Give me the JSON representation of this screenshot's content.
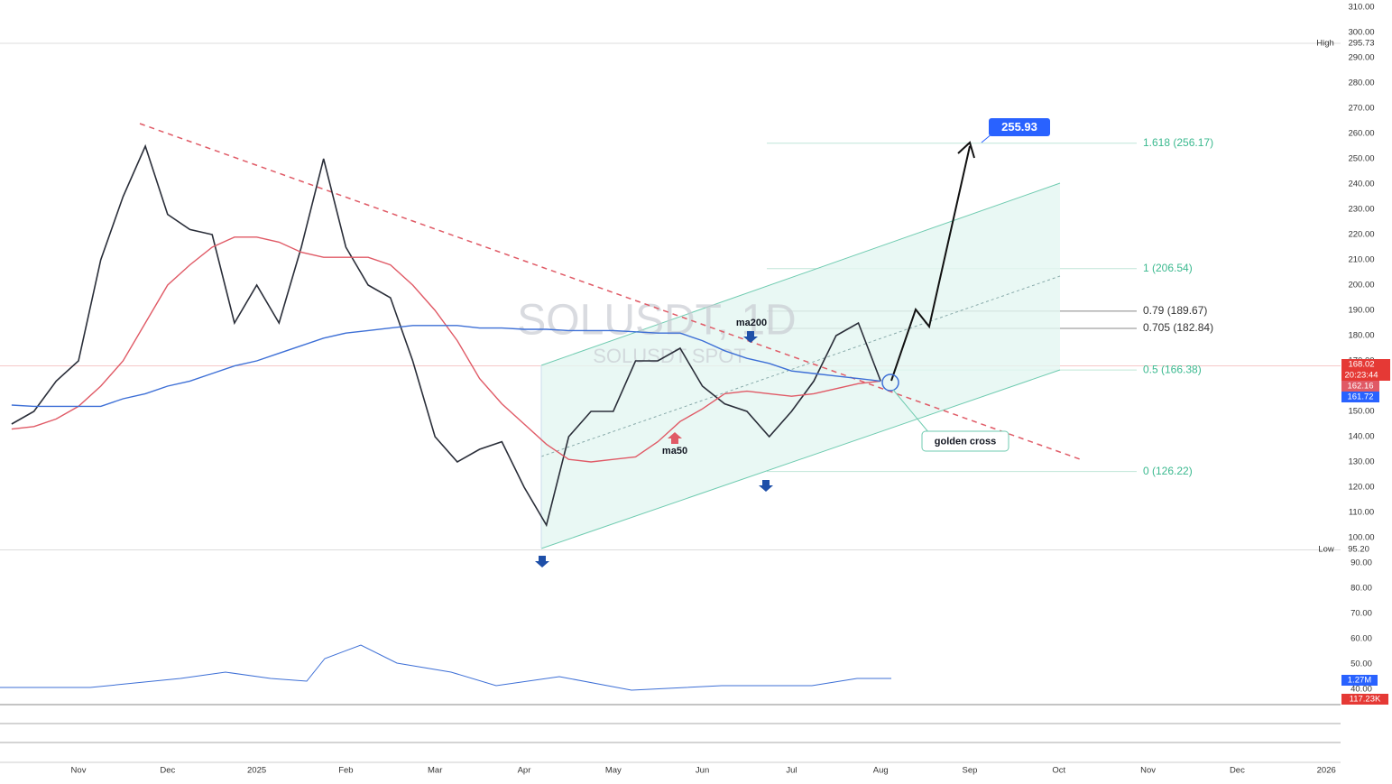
{
  "chart_data": {
    "type": "line",
    "title": "SOLUSDT, 1D",
    "subtitle": "SOLUSDT SPOT",
    "categories": [
      null,
      null,
      null,
      "Nov",
      null,
      null,
      null,
      "Dec",
      null,
      null,
      null,
      "2025",
      null,
      null,
      null,
      "Feb",
      null,
      null,
      null,
      "Mar",
      null,
      null,
      null,
      "Apr",
      null,
      null,
      null,
      "May",
      null,
      null,
      null,
      "Jun",
      null,
      null,
      null,
      "Jul",
      null,
      null,
      null,
      "Aug",
      null,
      null,
      null,
      "Sep",
      null,
      null,
      null,
      "Oct",
      null,
      null,
      null,
      "Nov",
      null,
      null,
      null,
      "Dec",
      null,
      null,
      null,
      "2026"
    ],
    "series": [
      {
        "name": "SOLUSDT",
        "color": "#2a2e39",
        "values": [
          145,
          150,
          162,
          170,
          210,
          235,
          255,
          228,
          222,
          220,
          185,
          200,
          185,
          215,
          250,
          215,
          200,
          195,
          170,
          140,
          130,
          135,
          138,
          120,
          105,
          140,
          150,
          150,
          170,
          170,
          175,
          160,
          153,
          150,
          140,
          150,
          162,
          180,
          185,
          162,
          null,
          null,
          null,
          null,
          null,
          null,
          null,
          null,
          null,
          null,
          null,
          null,
          null,
          null,
          null,
          null,
          null,
          null,
          null,
          null
        ]
      },
      {
        "name": "ma50",
        "color": "#e05a66",
        "values": [
          143,
          144,
          147,
          152,
          160,
          170,
          185,
          200,
          208,
          215,
          219,
          219,
          217,
          213,
          211,
          211,
          211,
          208,
          200,
          190,
          178,
          163,
          153,
          145,
          137,
          131,
          130,
          131,
          132,
          138,
          146,
          151,
          157,
          158,
          157,
          156,
          157,
          159,
          161,
          162,
          null,
          null,
          null,
          null,
          null,
          null,
          null,
          null,
          null,
          null,
          null,
          null,
          null,
          null,
          null,
          null,
          null,
          null,
          null,
          null
        ]
      },
      {
        "name": "ma200",
        "color": "#3d6fd6",
        "values": [
          152.5,
          152,
          152,
          152,
          152,
          155,
          157,
          160,
          162,
          165,
          168,
          170,
          173,
          176,
          179,
          181,
          182,
          183,
          184,
          184,
          184,
          183,
          183,
          182.5,
          182.5,
          182,
          182,
          182,
          181.5,
          181,
          181,
          178,
          174,
          171,
          169,
          166,
          165,
          164,
          163,
          162,
          null,
          null,
          null,
          null,
          null,
          null,
          null,
          null,
          null,
          null,
          null,
          null,
          null,
          null,
          null,
          null,
          null,
          null,
          null,
          null
        ]
      }
    ],
    "ylim": [
      40,
      310
    ],
    "yticks": [
      {
        "value": 310,
        "label": "310.00"
      },
      {
        "value": 300,
        "label": "300.00"
      },
      {
        "value": 290,
        "label": "290.00"
      },
      {
        "value": 280,
        "label": "280.00"
      },
      {
        "value": 270,
        "label": "270.00"
      },
      {
        "value": 260,
        "label": "260.00"
      },
      {
        "value": 250,
        "label": "250.00"
      },
      {
        "value": 240,
        "label": "240.00"
      },
      {
        "value": 230,
        "label": "230.00"
      },
      {
        "value": 220,
        "label": "220.00"
      },
      {
        "value": 210,
        "label": "210.00"
      },
      {
        "value": 200,
        "label": "200.00"
      },
      {
        "value": 190,
        "label": "190.00"
      },
      {
        "value": 180,
        "label": "180.00"
      },
      {
        "value": 170,
        "label": "170.00"
      },
      {
        "value": 150,
        "label": "150.00"
      },
      {
        "value": 140,
        "label": "140.00"
      },
      {
        "value": 130,
        "label": "130.00"
      },
      {
        "value": 120,
        "label": "120.00"
      },
      {
        "value": 110,
        "label": "110.00"
      },
      {
        "value": 100,
        "label": "100.00"
      },
      {
        "value": 90,
        "label": "90.00"
      },
      {
        "value": 80,
        "label": "80.00"
      },
      {
        "value": 70,
        "label": "70.00"
      },
      {
        "value": 60,
        "label": "60.00"
      },
      {
        "value": 50,
        "label": "50.00"
      },
      {
        "value": 40,
        "label": "40.00"
      }
    ],
    "fib_levels": [
      {
        "value": 256.17,
        "label": "1.618 (256.17)"
      },
      {
        "value": 206.54,
        "label": "1 (206.54)"
      },
      {
        "value": 189.67,
        "label": "0.79 (189.67)"
      },
      {
        "value": 182.84,
        "label": "0.705 (182.84)"
      },
      {
        "value": 166.38,
        "label": "0.5 (166.38)"
      },
      {
        "value": 126.22,
        "label": "0 (126.22)"
      }
    ],
    "high": {
      "tag": "High",
      "value": 295.73,
      "label": "295.73"
    },
    "low": {
      "tag": "Low",
      "value": 95.2,
      "label": "95.20"
    },
    "last_price": {
      "value": 168.02,
      "label": "168.02",
      "countdown": "20:23:44"
    },
    "ma_labels": [
      {
        "value": 162.16,
        "label": "162.16"
      },
      {
        "value": 161.72,
        "label": "161.72"
      }
    ],
    "volume_labels": [
      "1.27M",
      "117.23K"
    ],
    "target": {
      "value": 255.93,
      "label": "255.93"
    },
    "annotations": [
      "ma200",
      "ma50",
      "golden cross"
    ]
  }
}
